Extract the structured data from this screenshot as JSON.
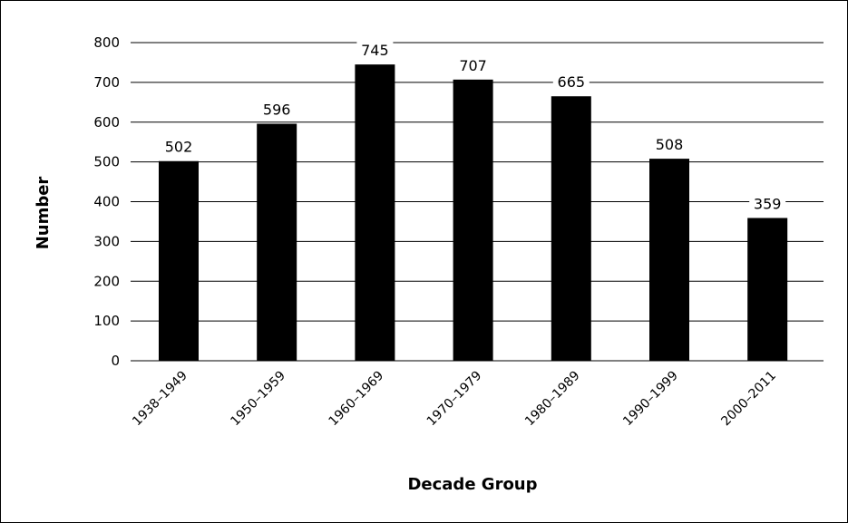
{
  "chart_data": {
    "type": "bar",
    "categories": [
      "1938–1949",
      "1950–1959",
      "1960–1969",
      "1970–1979",
      "1980–1989",
      "1990–1999",
      "2000–2011"
    ],
    "values": [
      502,
      596,
      745,
      707,
      665,
      508,
      359
    ],
    "xlabel": "Decade Group",
    "ylabel": "Number",
    "ylim": [
      0,
      800
    ],
    "yticks": [
      0,
      100,
      200,
      300,
      400,
      500,
      600,
      700,
      800
    ],
    "grid": true,
    "data_labels": true,
    "bar_color": "#000000"
  }
}
